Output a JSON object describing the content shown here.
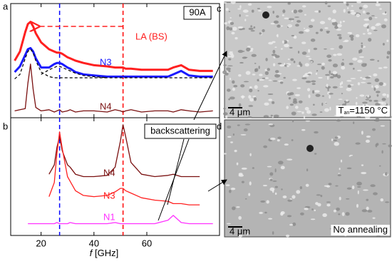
{
  "chart_data": [
    {
      "type": "line",
      "label": "a",
      "box_label": "90A",
      "annotation": "LA (BS)",
      "x": [
        10,
        12,
        14,
        15,
        16,
        17,
        18,
        20,
        23,
        25,
        26,
        27,
        28,
        30,
        31,
        33,
        36,
        40,
        45,
        48,
        50,
        51,
        52,
        54,
        58,
        63,
        68,
        70,
        73,
        76,
        80,
        85
      ],
      "xlim": [
        8.5,
        87.5
      ],
      "ylim": [
        0,
        100
      ],
      "xticks": [
        20,
        40,
        60
      ],
      "vlines": [
        {
          "x": 27,
          "color": "#0000ff"
        },
        {
          "x": 51,
          "color": "#ff0000"
        }
      ],
      "series": [
        {
          "name": "90A",
          "color": "#ff2020",
          "width": 3,
          "values": [
            50,
            58,
            75,
            82,
            84,
            80,
            74,
            66,
            60,
            58,
            57,
            57,
            56,
            53,
            52,
            50,
            48,
            46,
            45,
            44,
            44,
            44,
            43,
            43,
            42,
            42,
            42,
            44,
            46,
            42,
            41,
            41
          ]
        },
        {
          "name": "N3",
          "color": "#1a1aff",
          "width": 3,
          "values": [
            40,
            45,
            55,
            60,
            61,
            58,
            52,
            44,
            44,
            47,
            48,
            48,
            47,
            44,
            43,
            40,
            38,
            37,
            36,
            36,
            36,
            36,
            36,
            36,
            36,
            36,
            36,
            38,
            41,
            37,
            36,
            36
          ]
        },
        {
          "color": "#000000",
          "dash": true,
          "width": 1.2,
          "values": [
            34,
            38,
            52,
            58,
            60,
            57,
            50,
            40,
            36,
            35,
            35,
            35,
            35,
            35,
            35,
            35,
            35,
            35,
            35,
            35,
            35,
            35,
            35,
            35,
            35,
            35,
            35,
            35,
            35,
            35,
            35,
            35
          ]
        },
        {
          "color": "#000000",
          "dash": true,
          "width": 1.2,
          "values": [
            null,
            null,
            null,
            null,
            null,
            null,
            null,
            38,
            42,
            44,
            45,
            45,
            44,
            42,
            41,
            39,
            37,
            36,
            35,
            null,
            null,
            null,
            null,
            null,
            null,
            null,
            null,
            null,
            null,
            null,
            null,
            null
          ]
        },
        {
          "name": "N4",
          "color": "#7a1010",
          "width": 1.3,
          "values": [
            6,
            7,
            8,
            30,
            47,
            25,
            9,
            6,
            7,
            5,
            6,
            7,
            5,
            6,
            7,
            5,
            6,
            6,
            5,
            7,
            6,
            5,
            6,
            7,
            5,
            6,
            6,
            5,
            7,
            6,
            5,
            6
          ]
        }
      ]
    },
    {
      "type": "line",
      "label": "b",
      "annotation": "backscattering",
      "xlabel_var": "f",
      "xlabel_unit": "[GHz]",
      "x": [
        10,
        12,
        14,
        15,
        16,
        17,
        18,
        20,
        23,
        25,
        26,
        27,
        28,
        30,
        31,
        33,
        36,
        40,
        45,
        48,
        50,
        51,
        52,
        54,
        58,
        63,
        68,
        70,
        73,
        76,
        80,
        85
      ],
      "xlim": [
        8.5,
        87.5
      ],
      "ylim": [
        0,
        100
      ],
      "xticks": [
        20,
        40,
        60
      ],
      "vlines": [
        {
          "x": 27,
          "color": "#0000ff"
        },
        {
          "x": 51,
          "color": "#ff0000"
        }
      ],
      "series": [
        {
          "name": "N4",
          "color": "#7a1010",
          "width": 1.3,
          "values": [
            null,
            null,
            null,
            null,
            null,
            null,
            null,
            null,
            52,
            60,
            75,
            84,
            72,
            60,
            58,
            52,
            50,
            50,
            51,
            58,
            80,
            94,
            84,
            62,
            52,
            50,
            51,
            52,
            50,
            50,
            50,
            null
          ]
        },
        {
          "name": "N3",
          "color": "#ff2020",
          "width": 1.3,
          "values": [
            null,
            null,
            null,
            null,
            null,
            null,
            null,
            null,
            33,
            45,
            70,
            88,
            74,
            50,
            46,
            38,
            34,
            33,
            34,
            37,
            40,
            40,
            38,
            36,
            32,
            30,
            29,
            27,
            27,
            26,
            26,
            null
          ]
        },
        {
          "name": "N1",
          "color": "#ff30ff",
          "width": 1.3,
          "values": [
            null,
            null,
            null,
            10,
            10,
            10,
            10,
            10,
            10,
            10,
            11,
            10,
            10,
            10,
            11,
            10,
            10,
            10,
            10,
            11,
            10,
            10,
            10,
            10,
            10,
            10,
            13,
            17,
            11,
            10,
            10,
            10
          ]
        }
      ]
    }
  ],
  "images": [
    {
      "label": "c",
      "scale": "4 μm",
      "caption_main": "T",
      "caption_sub": "an",
      "caption_rest": "=1150 °C"
    },
    {
      "label": "d",
      "scale": "4 μm",
      "caption_main": "No annealing"
    }
  ]
}
